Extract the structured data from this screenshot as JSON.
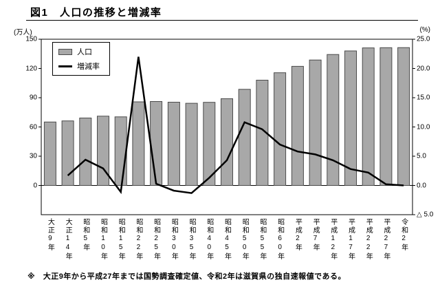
{
  "page": {
    "title": "図1　人口の推移と増減率",
    "footnote": "※　大正9年から平成27年までは国勢調査確定値、令和2年は滋賀県の独自速報値である。"
  },
  "chart_data": {
    "type": "bar+line",
    "title": "人口の推移と増減率",
    "grid": false,
    "legend_position": "top-left-inside",
    "categories": [
      "大正9年",
      "大正14年",
      "昭和5年",
      "昭和10年",
      "昭和15年",
      "昭和22年",
      "昭和25年",
      "昭和30年",
      "昭和35年",
      "昭和40年",
      "昭和45年",
      "昭和50年",
      "昭和55年",
      "昭和60年",
      "平成2年",
      "平成7年",
      "平成12年",
      "平成17年",
      "平成22年",
      "平成27年",
      "令和2年"
    ],
    "left_axis": {
      "unit": "(万人)",
      "min": 0,
      "max": 150,
      "ticks": [
        0,
        30,
        60,
        90,
        120,
        150
      ]
    },
    "right_axis": {
      "unit": "(%)",
      "min": -5,
      "max": 25,
      "tick_values": [
        25,
        20,
        15,
        10,
        5,
        0,
        -5
      ],
      "tick_labels": [
        "25.0",
        "20.0",
        "15.0",
        "10.0",
        "5.0",
        "0.0",
        "△ 5.0"
      ]
    },
    "series": [
      {
        "name": "人口",
        "type": "bar",
        "axis": "left",
        "values": [
          65.1,
          66.2,
          69.2,
          71.1,
          70.4,
          85.8,
          86.1,
          85.4,
          84.3,
          85.3,
          89.0,
          98.6,
          108.0,
          115.6,
          122.2,
          128.7,
          134.3,
          138.0,
          141.1,
          141.3,
          141.4
        ]
      },
      {
        "name": "増減率",
        "type": "line",
        "axis": "right",
        "values": [
          null,
          1.7,
          4.4,
          2.9,
          -1.1,
          22.0,
          0.3,
          -0.9,
          -1.3,
          1.3,
          4.3,
          10.8,
          9.6,
          7.0,
          5.8,
          5.3,
          4.3,
          2.8,
          2.2,
          0.2,
          0.0
        ]
      }
    ],
    "colors": {
      "bar_fill": "#a8a8a8",
      "bar_edge": "#4a4a4a",
      "line": "#000000"
    }
  }
}
